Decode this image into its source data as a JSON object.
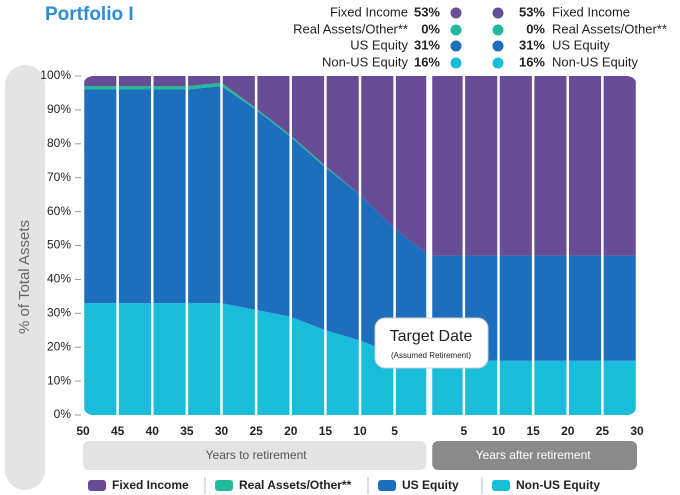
{
  "chart_data": {
    "type": "stacked-area",
    "title": "Portfolio I",
    "y_label": "% of Total Assets",
    "x": [
      -50,
      -45,
      -40,
      -35,
      -30,
      -25,
      -20,
      -15,
      -10,
      -5,
      0,
      5,
      10,
      15,
      20,
      25,
      30
    ],
    "series": [
      {
        "name": "Fixed Income",
        "color": "#674d95",
        "values": [
          3,
          3,
          3,
          3,
          2,
          9.5,
          17.5,
          26.5,
          35,
          45,
          53,
          53,
          53,
          53,
          53,
          53,
          53
        ]
      },
      {
        "name": "Real Assets/Other**",
        "color": "#22b89a",
        "values": [
          1,
          1,
          1,
          1,
          1,
          0.5,
          0.5,
          0.5,
          0,
          0,
          0,
          0,
          0,
          0,
          0,
          0,
          0
        ]
      },
      {
        "name": "US Equity",
        "color": "#1d6fbe",
        "values": [
          63,
          63,
          63,
          63,
          64,
          59,
          53,
          48,
          43,
          37,
          32,
          31,
          31,
          31,
          31,
          31,
          31
        ]
      },
      {
        "name": "Non-US Equity",
        "color": "#19bcd9",
        "values": [
          33,
          33,
          33,
          33,
          33,
          31,
          29,
          25,
          22,
          18,
          15,
          16,
          16,
          16,
          16,
          16,
          16
        ]
      }
    ],
    "xlim": [
      -50,
      30
    ],
    "xticks": [
      {
        "value": -50,
        "label": "50"
      },
      {
        "value": -45,
        "label": "45"
      },
      {
        "value": -40,
        "label": "40"
      },
      {
        "value": -35,
        "label": "35"
      },
      {
        "value": -30,
        "label": "30"
      },
      {
        "value": -25,
        "label": "25"
      },
      {
        "value": -20,
        "label": "20"
      },
      {
        "value": -15,
        "label": "15"
      },
      {
        "value": -10,
        "label": "10"
      },
      {
        "value": -5,
        "label": "5"
      },
      5,
      10,
      15,
      20,
      25,
      30
    ],
    "ylim": [
      0,
      100
    ],
    "yticks": [
      {
        "value": 0,
        "label": "0%"
      },
      {
        "value": 10,
        "label": "10%"
      },
      {
        "value": 20,
        "label": "20%"
      },
      {
        "value": 30,
        "label": "30%"
      },
      {
        "value": 40,
        "label": "40%"
      },
      {
        "value": 50,
        "label": "50%"
      },
      {
        "value": 60,
        "label": "60%"
      },
      {
        "value": 70,
        "label": "70%"
      },
      {
        "value": 80,
        "label": "80%"
      },
      {
        "value": 90,
        "label": "90%"
      },
      {
        "value": 100,
        "label": "100%"
      }
    ],
    "grid": true,
    "annotation": {
      "title": "Target Date",
      "subtitle": "(Assumed Retirement)"
    },
    "x_bands": [
      "Years to retirement",
      "Years after retirement"
    ],
    "summary": {
      "left": [
        {
          "label": "Fixed Income",
          "value": "53%"
        },
        {
          "label": "Real Assets/Other**",
          "value": "0%"
        },
        {
          "label": "US Equity",
          "value": "31%"
        },
        {
          "label": "Non-US Equity",
          "value": "16%"
        }
      ],
      "right": [
        {
          "label": "Fixed Income",
          "value": "53%"
        },
        {
          "label": "Real Assets/Other**",
          "value": "0%"
        },
        {
          "label": "US Equity",
          "value": "31%"
        },
        {
          "label": "Non-US Equity",
          "value": "16%"
        }
      ]
    }
  }
}
